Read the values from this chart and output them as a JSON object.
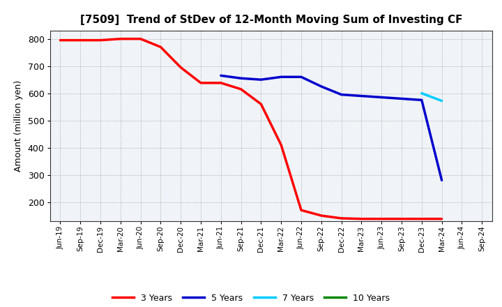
{
  "title": "[7509]  Trend of StDev of 12-Month Moving Sum of Investing CF",
  "ylabel": "Amount (million yen)",
  "background_color": "#ffffff",
  "plot_bg_color": "#f0f4f8",
  "grid_color": "#999999",
  "ylim": [
    130,
    830
  ],
  "yticks": [
    200,
    300,
    400,
    500,
    600,
    700,
    800
  ],
  "x_labels": [
    "Jun-19",
    "Sep-19",
    "Dec-19",
    "Mar-20",
    "Jun-20",
    "Sep-20",
    "Dec-20",
    "Mar-21",
    "Jun-21",
    "Sep-21",
    "Dec-21",
    "Mar-22",
    "Jun-22",
    "Sep-22",
    "Dec-22",
    "Mar-23",
    "Jun-23",
    "Sep-23",
    "Dec-23",
    "Mar-24",
    "Jun-24",
    "Sep-24"
  ],
  "series": [
    {
      "name": "3 Years",
      "color": "#ff0000",
      "data": [
        795,
        795,
        795,
        800,
        800,
        770,
        695,
        638,
        638,
        615,
        560,
        410,
        170,
        150,
        140,
        138,
        138,
        138,
        138,
        138,
        null,
        null
      ]
    },
    {
      "name": "5 Years",
      "color": "#0000cc",
      "data": [
        null,
        null,
        null,
        null,
        null,
        null,
        null,
        null,
        665,
        655,
        650,
        660,
        660,
        625,
        595,
        590,
        585,
        580,
        575,
        280,
        null,
        null
      ]
    },
    {
      "name": "7 Years",
      "color": "#00ccff",
      "data": [
        null,
        null,
        null,
        null,
        null,
        null,
        null,
        null,
        null,
        null,
        null,
        null,
        null,
        null,
        null,
        null,
        null,
        null,
        600,
        572,
        null,
        null
      ]
    },
    {
      "name": "10 Years",
      "color": "#008800",
      "data": [
        null,
        null,
        null,
        null,
        null,
        null,
        null,
        null,
        null,
        null,
        null,
        null,
        null,
        null,
        null,
        null,
        null,
        null,
        null,
        null,
        null,
        null
      ]
    }
  ]
}
